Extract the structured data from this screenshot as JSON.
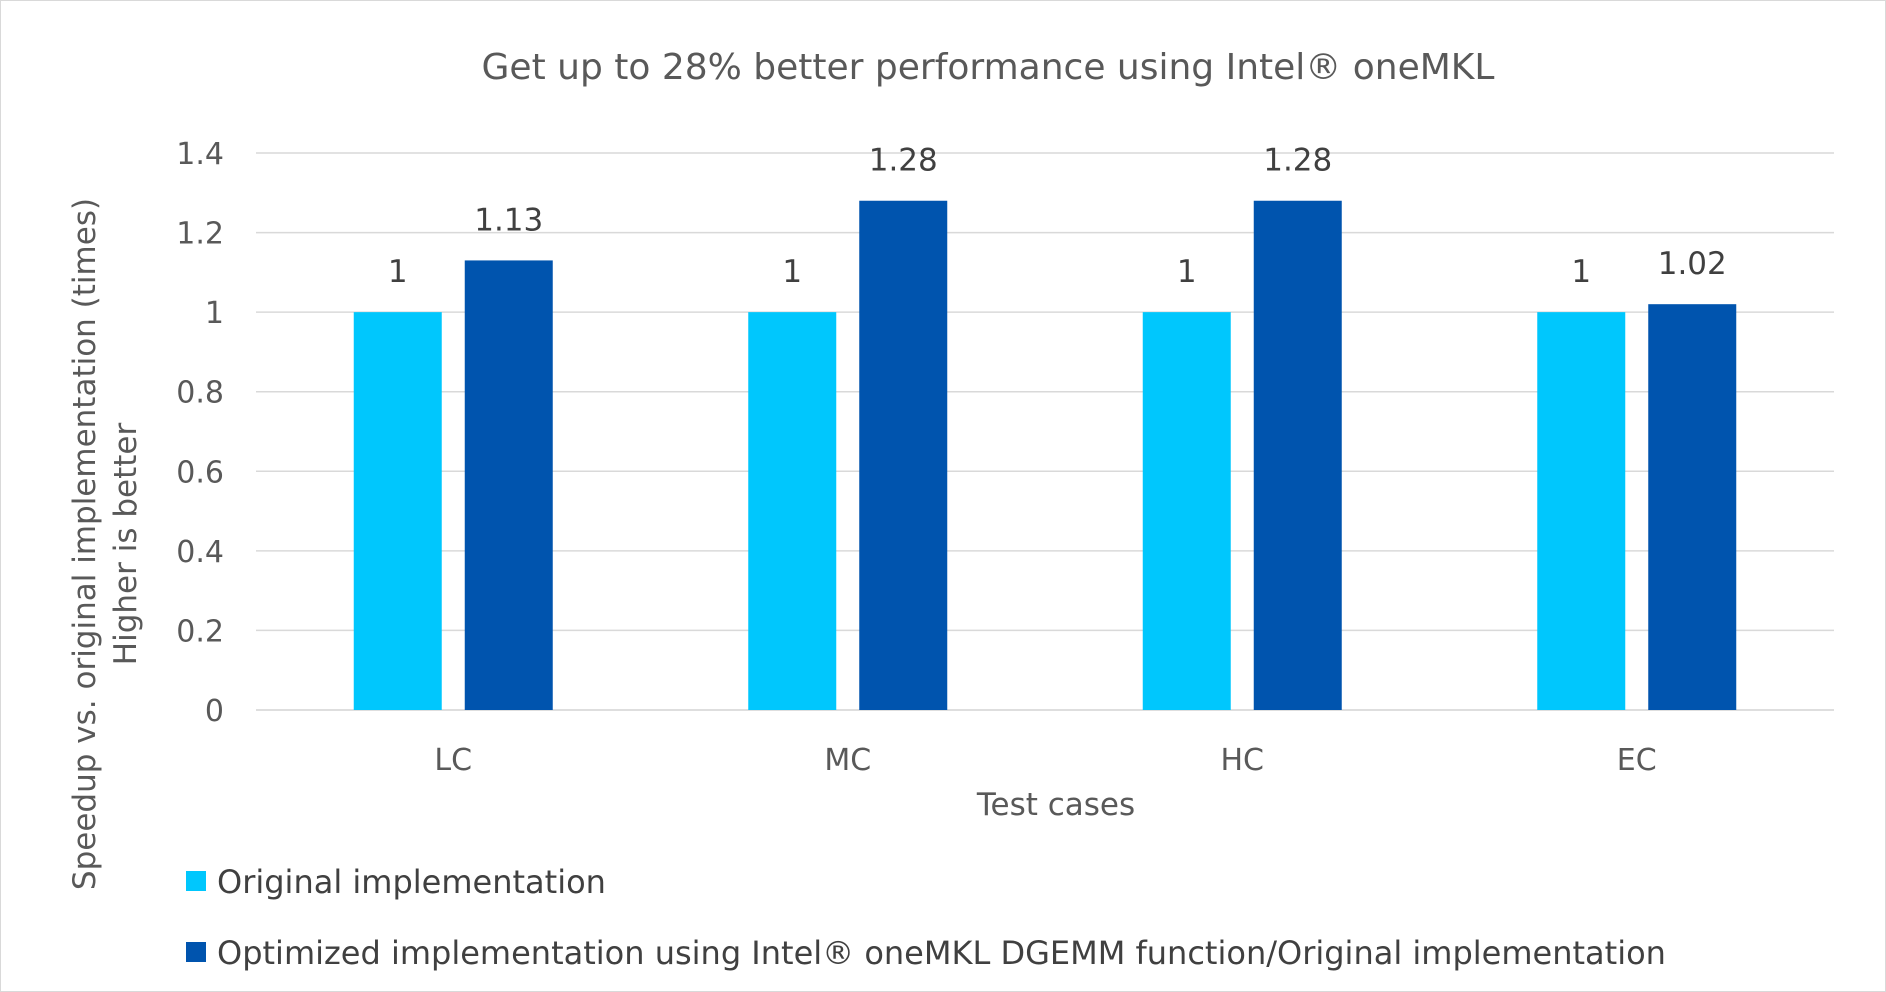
{
  "chart_data": {
    "type": "bar",
    "title": "Get up to 28% better performance using Intel® oneMKL",
    "xlabel": "Test cases",
    "ylabel_line1": "Speedup vs. original implementation (times)",
    "ylabel_line2": "Higher is better",
    "ylim": [
      0,
      1.4
    ],
    "yticks": [
      0,
      0.2,
      0.4,
      0.6,
      0.8,
      1,
      1.2,
      1.4
    ],
    "ytick_labels": [
      "0",
      "0.2",
      "0.4",
      "0.6",
      "0.8",
      "1",
      "1.2",
      "1.4"
    ],
    "grid": true,
    "legend_position": "bottom-left",
    "categories": [
      "LC",
      "MC",
      "HC",
      "EC"
    ],
    "series": [
      {
        "name": "Original implementation",
        "color": "#00c7fd",
        "values": [
          1,
          1,
          1,
          1
        ],
        "labels": [
          "1",
          "1",
          "1",
          "1"
        ]
      },
      {
        "name": "Optimized implementation using Intel® oneMKL DGEMM function/Original implementation",
        "color": "#0054ae",
        "values": [
          1.13,
          1.28,
          1.28,
          1.02
        ],
        "labels": [
          "1.13",
          "1.28",
          "1.28",
          "1.02"
        ]
      }
    ]
  }
}
